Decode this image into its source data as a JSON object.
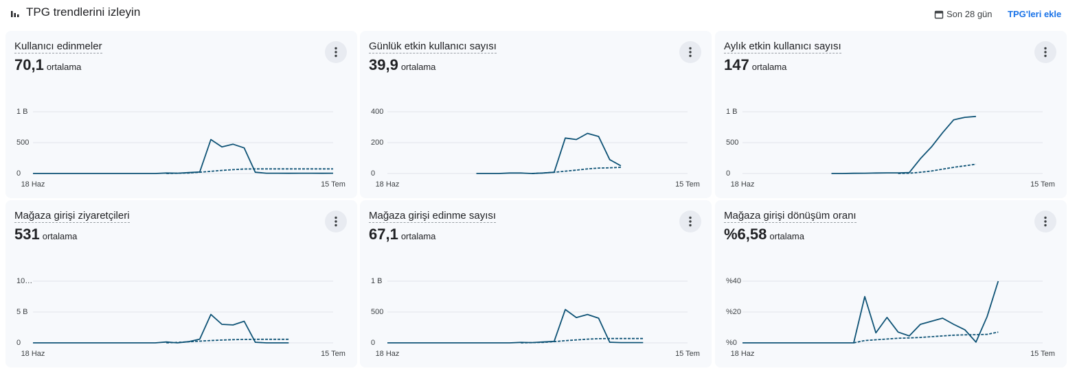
{
  "header": {
    "title": "TPG trendlerini izleyin",
    "date_range": "Son 28 gün",
    "add_button": "TPG'leri ekle"
  },
  "chart_data": [
    {
      "type": "line",
      "title": "Kullanıcı edinmeler",
      "average": "70,1",
      "average_label": "ortalama",
      "grid": true,
      "categories": [
        "18 Haz",
        null,
        null,
        null,
        null,
        null,
        null,
        null,
        null,
        null,
        null,
        null,
        null,
        null,
        null,
        null,
        null,
        null,
        null,
        null,
        null,
        null,
        null,
        null,
        null,
        null,
        null,
        "15 Tem"
      ],
      "ylim": [
        0,
        1000
      ],
      "yticks": [
        0,
        500,
        {
          "value": 1000,
          "label": "1 B"
        }
      ],
      "series": [
        {
          "color": "#0d5275",
          "line_style": "solid",
          "values": [
            0,
            0,
            0,
            0,
            0,
            0,
            0,
            0,
            0,
            0,
            0,
            0,
            8,
            5,
            15,
            25,
            550,
            430,
            475,
            415,
            20,
            5,
            5,
            3,
            5,
            5,
            3,
            5
          ]
        },
        {
          "color": "#0d5275",
          "line_style": "dashed",
          "values": [
            null,
            null,
            null,
            null,
            null,
            null,
            null,
            null,
            null,
            null,
            null,
            null,
            0,
            3,
            8,
            20,
            35,
            50,
            62,
            72,
            75,
            75,
            75,
            75,
            75,
            75,
            75,
            75
          ]
        }
      ]
    },
    {
      "type": "line",
      "title": "Günlük etkin kullanıcı sayısı",
      "average": "39,9",
      "average_label": "ortalama",
      "grid": true,
      "categories": [
        "18 Haz",
        null,
        null,
        null,
        null,
        null,
        null,
        null,
        null,
        null,
        null,
        null,
        null,
        null,
        null,
        null,
        null,
        null,
        null,
        null,
        null,
        null,
        null,
        null,
        null,
        null,
        null,
        "15 Tem"
      ],
      "ylim": [
        0,
        400
      ],
      "yticks": [
        0,
        200,
        400
      ],
      "series": [
        {
          "color": "#0d5275",
          "line_style": "solid",
          "values": [
            null,
            null,
            null,
            null,
            null,
            null,
            null,
            null,
            0,
            0,
            0,
            3,
            3,
            0,
            3,
            8,
            230,
            220,
            260,
            240,
            90,
            50,
            null,
            null,
            null,
            null,
            null,
            null
          ]
        },
        {
          "color": "#0d5275",
          "line_style": "dashed",
          "values": [
            null,
            null,
            null,
            null,
            null,
            null,
            null,
            null,
            null,
            null,
            null,
            null,
            null,
            0,
            3,
            8,
            15,
            22,
            30,
            35,
            37,
            40,
            null,
            null,
            null,
            null,
            null,
            null
          ]
        }
      ]
    },
    {
      "type": "line",
      "title": "Aylık etkin kullanıcı sayısı",
      "average": "147",
      "average_label": "ortalama",
      "grid": true,
      "categories": [
        "18 Haz",
        null,
        null,
        null,
        null,
        null,
        null,
        null,
        null,
        null,
        null,
        null,
        null,
        null,
        null,
        null,
        null,
        null,
        null,
        null,
        null,
        null,
        null,
        null,
        null,
        null,
        null,
        "15 Tem"
      ],
      "ylim": [
        0,
        1000
      ],
      "yticks": [
        0,
        500,
        {
          "value": 1000,
          "label": "1 B"
        }
      ],
      "series": [
        {
          "color": "#0d5275",
          "line_style": "solid",
          "values": [
            null,
            null,
            null,
            null,
            null,
            null,
            null,
            null,
            0,
            0,
            3,
            5,
            8,
            10,
            10,
            15,
            240,
            430,
            660,
            870,
            910,
            925,
            null,
            null,
            null,
            null,
            null,
            null
          ]
        },
        {
          "color": "#0d5275",
          "line_style": "dashed",
          "values": [
            null,
            null,
            null,
            null,
            null,
            null,
            null,
            null,
            null,
            null,
            null,
            null,
            null,
            null,
            0,
            5,
            20,
            40,
            70,
            100,
            125,
            150,
            null,
            null,
            null,
            null,
            null,
            null
          ]
        }
      ]
    },
    {
      "type": "line",
      "title": "Mağaza girişi ziyaretçileri",
      "average": "531",
      "average_label": "ortalama",
      "grid": true,
      "categories": [
        "18 Haz",
        null,
        null,
        null,
        null,
        null,
        null,
        null,
        null,
        null,
        null,
        null,
        null,
        null,
        null,
        null,
        null,
        null,
        null,
        null,
        null,
        null,
        null,
        null,
        null,
        null,
        null,
        "15 Tem"
      ],
      "ylim": [
        0,
        10000
      ],
      "yticks": [
        0,
        {
          "value": 5000,
          "label": "5 B"
        },
        {
          "value": 10000,
          "label": "10…"
        }
      ],
      "series": [
        {
          "color": "#0d5275",
          "line_style": "solid",
          "values": [
            0,
            0,
            0,
            0,
            0,
            0,
            0,
            0,
            0,
            0,
            0,
            0,
            150,
            0,
            200,
            600,
            4600,
            3000,
            2900,
            3500,
            100,
            0,
            0,
            0,
            null,
            null,
            null,
            null
          ]
        },
        {
          "color": "#0d5275",
          "line_style": "dashed",
          "values": [
            null,
            null,
            null,
            null,
            null,
            null,
            null,
            null,
            null,
            null,
            null,
            null,
            0,
            80,
            180,
            280,
            380,
            460,
            520,
            560,
            580,
            580,
            580,
            580,
            null,
            null,
            null,
            null
          ]
        }
      ]
    },
    {
      "type": "line",
      "title": "Mağaza girişi edinme sayısı",
      "average": "67,1",
      "average_label": "ortalama",
      "grid": true,
      "categories": [
        "18 Haz",
        null,
        null,
        null,
        null,
        null,
        null,
        null,
        null,
        null,
        null,
        null,
        null,
        null,
        null,
        null,
        null,
        null,
        null,
        null,
        null,
        null,
        null,
        null,
        null,
        null,
        null,
        "15 Tem"
      ],
      "ylim": [
        0,
        1000
      ],
      "yticks": [
        0,
        500,
        {
          "value": 1000,
          "label": "1 B"
        }
      ],
      "series": [
        {
          "color": "#0d5275",
          "line_style": "solid",
          "values": [
            0,
            0,
            0,
            0,
            0,
            0,
            0,
            0,
            0,
            0,
            0,
            0,
            8,
            5,
            15,
            25,
            540,
            410,
            460,
            400,
            10,
            5,
            5,
            5,
            null,
            null,
            null,
            null
          ]
        },
        {
          "color": "#0d5275",
          "line_style": "dashed",
          "values": [
            null,
            null,
            null,
            null,
            null,
            null,
            null,
            null,
            null,
            null,
            null,
            null,
            0,
            3,
            8,
            20,
            35,
            48,
            60,
            68,
            70,
            70,
            70,
            70,
            null,
            null,
            null,
            null
          ]
        }
      ]
    },
    {
      "type": "line",
      "title": "Mağaza girişi dönüşüm oranı",
      "average": "%6,58",
      "average_label": "ortalama",
      "grid": true,
      "categories": [
        "18 Haz",
        null,
        null,
        null,
        null,
        null,
        null,
        null,
        null,
        null,
        null,
        null,
        null,
        null,
        null,
        null,
        null,
        null,
        null,
        null,
        null,
        null,
        null,
        null,
        null,
        null,
        null,
        "15 Tem"
      ],
      "ylim": [
        0,
        40
      ],
      "yticks": [
        {
          "value": 0,
          "label": "%0"
        },
        {
          "value": 20,
          "label": "%20"
        },
        {
          "value": 40,
          "label": "%40"
        }
      ],
      "series": [
        {
          "color": "#0d5275",
          "line_style": "solid",
          "values": [
            0,
            0,
            0,
            0,
            0,
            0,
            0,
            0,
            0,
            0,
            0,
            30,
            6.5,
            16.5,
            7,
            4.5,
            12,
            14,
            16,
            12,
            8.5,
            0.5,
            17,
            40,
            null,
            null,
            null,
            null
          ]
        },
        {
          "color": "#0d5275",
          "line_style": "dashed",
          "values": [
            null,
            null,
            null,
            null,
            null,
            null,
            null,
            null,
            null,
            null,
            0,
            1.5,
            2,
            2.5,
            3,
            3.2,
            3.5,
            4,
            4.5,
            5,
            5.2,
            5.3,
            5.5,
            7,
            null,
            null,
            null,
            null
          ]
        }
      ]
    }
  ]
}
